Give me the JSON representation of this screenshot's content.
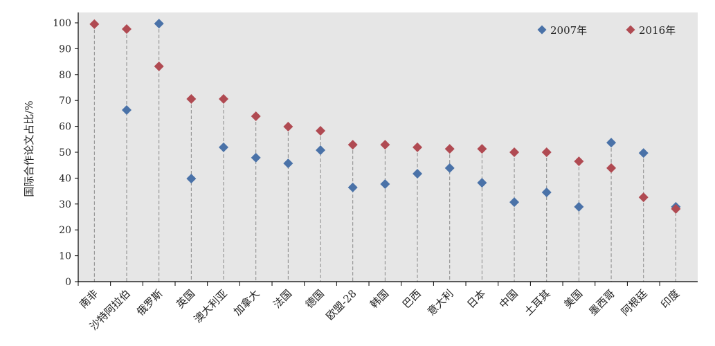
{
  "chart_data": {
    "type": "scatter",
    "title": "",
    "xlabel": "",
    "ylabel": "国际合作论文占比/%",
    "ylim": [
      0,
      100
    ],
    "yticks": [
      0,
      10,
      20,
      30,
      40,
      50,
      60,
      70,
      80,
      90,
      100
    ],
    "grid": false,
    "legend_placement": "top-right",
    "categories": [
      "南非",
      "沙特阿拉伯",
      "俄罗斯",
      "英国",
      "澳大利亚",
      "加拿大",
      "法国",
      "德国",
      "欧盟-28",
      "韩国",
      "巴西",
      "意大利",
      "日本",
      "中国",
      "土耳其",
      "美国",
      "墨西哥",
      "阿根廷",
      "印度"
    ],
    "series": [
      {
        "name": "2007年",
        "color": "#4a72a8",
        "marker": "diamond",
        "values": [
          null,
          66.3,
          99.7,
          39.8,
          51.9,
          47.9,
          45.7,
          50.8,
          36.4,
          37.7,
          41.7,
          43.9,
          38.2,
          30.7,
          34.5,
          28.9,
          53.7,
          49.7,
          28.9
        ]
      },
      {
        "name": "2016年",
        "color": "#b04a52",
        "marker": "diamond",
        "values": [
          99.5,
          97.6,
          83.2,
          70.6,
          70.6,
          63.9,
          59.9,
          58.3,
          52.9,
          52.9,
          51.9,
          51.3,
          51.3,
          50.0,
          50.0,
          46.5,
          43.9,
          32.6,
          28.1
        ]
      }
    ]
  }
}
